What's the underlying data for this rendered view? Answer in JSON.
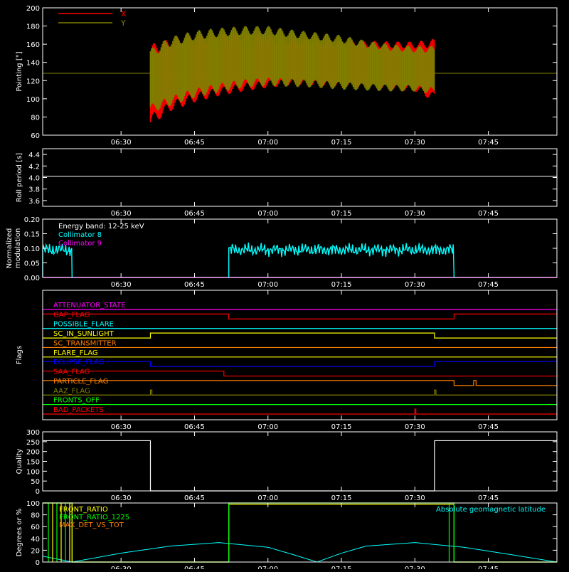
{
  "chart_data": [
    {
      "id": "pointing",
      "type": "area",
      "ylabel": "Pointing [°]",
      "ylim": [
        60,
        200
      ],
      "yticks": [
        60,
        80,
        100,
        120,
        140,
        160,
        180,
        200
      ],
      "legend": [
        {
          "label": "X",
          "color": "#ff0000"
        },
        {
          "label": "Y",
          "color": "#808000"
        }
      ],
      "baseline": 128,
      "series": [
        {
          "name": "X",
          "color": "#ff0000",
          "x": [
            "06:36",
            "06:40",
            "06:45",
            "06:50",
            "06:55",
            "07:00",
            "07:05",
            "07:10",
            "07:15",
            "07:20",
            "07:25",
            "07:30",
            "07:34"
          ],
          "upper": [
            160,
            166,
            170,
            172,
            172,
            170,
            166,
            165,
            164,
            164,
            163,
            163,
            166
          ],
          "lower": [
            70,
            86,
            96,
            103,
            108,
            112,
            115,
            114,
            113,
            112,
            110,
            108,
            97
          ]
        },
        {
          "name": "Y",
          "color": "#808000",
          "x": [
            "06:36",
            "06:40",
            "06:45",
            "06:50",
            "06:55",
            "07:00",
            "07:05",
            "07:10",
            "07:15",
            "07:20",
            "07:25",
            "07:30",
            "07:34"
          ],
          "upper": [
            155,
            168,
            175,
            178,
            180,
            180,
            176,
            173,
            170,
            164,
            160,
            158,
            158
          ],
          "lower": [
            84,
            92,
            101,
            107,
            112,
            114,
            113,
            112,
            110,
            109,
            108,
            108,
            105
          ]
        }
      ]
    },
    {
      "id": "roll",
      "type": "line",
      "ylabel": "Roll period [s]",
      "ylim": [
        3.5,
        4.5
      ],
      "yticks": [
        3.6,
        3.8,
        4.0,
        4.2,
        4.4
      ],
      "series": [
        {
          "name": "roll",
          "color": "#ffffff",
          "x": [
            "06:14",
            "06:30",
            "06:45",
            "07:00",
            "07:15",
            "07:30",
            "07:45",
            "07:59"
          ],
          "values": [
            4.02,
            4.02,
            4.02,
            4.02,
            4.02,
            4.02,
            4.02,
            4.02
          ]
        }
      ]
    },
    {
      "id": "modulation",
      "type": "line",
      "ylabel": "Normalized modulation",
      "ylim": [
        0.0,
        0.2
      ],
      "yticks": [
        0.0,
        0.05,
        0.1,
        0.15,
        0.2
      ],
      "annotation": "Energy band: 12-25 keV",
      "legend": [
        {
          "label": "Collimator 8",
          "color": "#00ffff"
        },
        {
          "label": "Collimator 9",
          "color": "#ff00ff"
        }
      ],
      "series": [
        {
          "name": "Collimator 8",
          "color": "#00ffff",
          "segments": [
            {
              "start": "06:14",
              "end": "06:20",
              "mean": 0.095
            },
            {
              "start": "06:52",
              "end": "07:38",
              "mean": 0.095
            }
          ]
        },
        {
          "name": "Collimator 9",
          "color": "#ff00ff",
          "x": [
            "06:14",
            "07:59"
          ],
          "values": [
            0.0,
            0.0
          ]
        }
      ]
    },
    {
      "id": "flags",
      "type": "line",
      "ylabel": "Flags",
      "series": [
        {
          "name": "ATTENUATOR_STATE",
          "color": "#ff00ff",
          "steps": [
            [
              "06:14",
              0
            ]
          ]
        },
        {
          "name": "GAP_FLAG",
          "color": "#ff0000",
          "steps": [
            [
              "06:14",
              1
            ],
            [
              "06:52",
              0
            ],
            [
              "07:38",
              1
            ]
          ]
        },
        {
          "name": "POSSIBLE_FLARE",
          "color": "#00ffff",
          "steps": [
            [
              "06:14",
              0
            ]
          ]
        },
        {
          "name": "SC_IN_SUNLIGHT",
          "color": "#ffff00",
          "steps": [
            [
              "06:14",
              0
            ],
            [
              "06:36",
              1
            ],
            [
              "07:34",
              0
            ]
          ]
        },
        {
          "name": "SC_TRANSMITTER",
          "color": "#ff8000",
          "steps": [
            [
              "06:14",
              0
            ]
          ]
        },
        {
          "name": "FLARE_FLAG",
          "color": "#ffff00",
          "steps": [
            [
              "06:14",
              0
            ]
          ]
        },
        {
          "name": "ECLIPSE_FLAG",
          "color": "#0000ff",
          "steps": [
            [
              "06:14",
              1
            ],
            [
              "06:36",
              0
            ],
            [
              "07:34",
              1
            ]
          ]
        },
        {
          "name": "SAA_FLAG",
          "color": "#ff0000",
          "steps": [
            [
              "06:14",
              1
            ],
            [
              "06:51",
              0
            ]
          ]
        },
        {
          "name": "PARTICLE_FLAG",
          "color": "#ff8000",
          "steps": [
            [
              "06:14",
              1
            ],
            [
              "07:38",
              0
            ],
            [
              "07:42",
              1
            ],
            [
              "07:42.5",
              0
            ]
          ]
        },
        {
          "name": "AAZ_FLAG",
          "color": "#808000",
          "steps": [
            [
              "06:14",
              0
            ],
            [
              "06:36",
              1
            ],
            [
              "06:36.3",
              0
            ],
            [
              "07:34",
              1
            ],
            [
              "07:34.3",
              0
            ]
          ]
        },
        {
          "name": "FRONTS_OFF",
          "color": "#00ff00",
          "steps": [
            [
              "06:14",
              0
            ]
          ]
        },
        {
          "name": "BAD_PACKETS",
          "color": "#ff0000",
          "steps": [
            [
              "06:14",
              0
            ],
            [
              "07:30",
              1
            ],
            [
              "07:30.2",
              0
            ]
          ]
        }
      ]
    },
    {
      "id": "quality",
      "type": "line",
      "ylabel": "Quality",
      "ylim": [
        0,
        300
      ],
      "yticks": [
        0,
        50,
        100,
        150,
        200,
        250,
        300
      ],
      "series": [
        {
          "name": "quality",
          "color": "#ffffff",
          "steps": [
            [
              "06:14",
              255
            ],
            [
              "06:36",
              0
            ],
            [
              "07:34",
              255
            ]
          ]
        }
      ]
    },
    {
      "id": "geo",
      "type": "line",
      "ylabel": "Degrees or %",
      "ylim": [
        0,
        100
      ],
      "yticks": [
        0,
        20,
        40,
        60,
        80,
        100
      ],
      "legend": [
        {
          "label": "FRONT_RATIO",
          "color": "#ffff00"
        },
        {
          "label": "FRONT_RATIO_1225",
          "color": "#00ff00"
        },
        {
          "label": "MAX_DET_VS_TOT",
          "color": "#ff8000"
        }
      ],
      "right_label": "Absolute geomagnetic latitude",
      "series": [
        {
          "name": "Absolute geomagnetic latitude",
          "color": "#00ffff",
          "x": [
            "06:14",
            "06:20",
            "06:30",
            "06:40",
            "06:50",
            "07:00",
            "07:05",
            "07:10",
            "07:15",
            "07:20",
            "07:30",
            "07:40",
            "07:50",
            "07:59"
          ],
          "values": [
            10,
            0,
            15,
            27,
            33,
            25,
            13,
            0,
            15,
            27,
            33,
            25,
            12,
            0
          ]
        },
        {
          "name": "FRONT_RATIO_1225",
          "color": "#00ff00",
          "steps": [
            [
              "06:14",
              100
            ],
            [
              "06:20",
              0
            ],
            [
              "06:52",
              100
            ],
            [
              "07:38",
              0
            ]
          ]
        },
        {
          "name": "FRONT_RATIO",
          "color": "#ffff00",
          "steps": [
            [
              "06:14",
              100
            ],
            [
              "06:20",
              0
            ],
            [
              "06:52",
              98
            ],
            [
              "07:38",
              0
            ]
          ]
        }
      ]
    }
  ],
  "x_axis": {
    "range": [
      "06:14",
      "07:59"
    ],
    "ticks": [
      "06:30",
      "06:45",
      "07:00",
      "07:15",
      "07:30",
      "07:45"
    ]
  },
  "colors": {
    "background": "#000000",
    "axes": "#ffffff"
  }
}
